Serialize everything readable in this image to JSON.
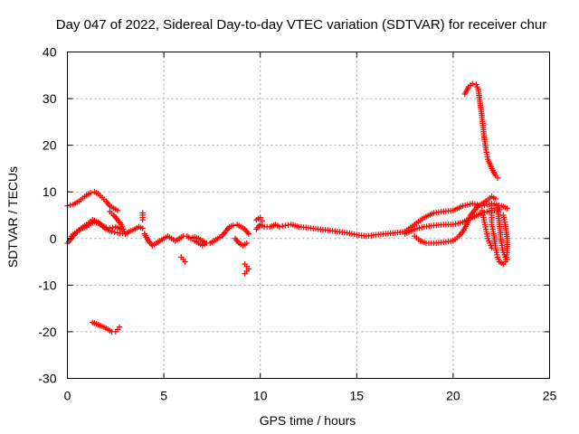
{
  "chart_data": {
    "type": "scatter",
    "title": "Day 047 of 2022, Sidereal Day-to-day VTEC variation (SDTVAR) for receiver chur",
    "xlabel": "GPS time / hours",
    "ylabel": "SDTVAR / TECUs",
    "xlim": [
      0,
      25
    ],
    "ylim": [
      -30,
      40
    ],
    "x_ticks": [
      0,
      5,
      10,
      15,
      20,
      25
    ],
    "y_ticks": [
      -30,
      -20,
      -10,
      0,
      10,
      20,
      30,
      40
    ],
    "grid": true,
    "marker": "+",
    "color": "#ff0000",
    "series": [
      {
        "name": "trace-a",
        "points": [
          [
            0.0,
            7
          ],
          [
            0.3,
            7.3
          ],
          [
            0.6,
            8
          ],
          [
            0.9,
            9
          ],
          [
            1.2,
            9.8
          ],
          [
            1.4,
            10
          ],
          [
            1.6,
            9.6
          ],
          [
            1.8,
            8.8
          ],
          [
            2.0,
            8
          ],
          [
            2.2,
            7
          ],
          [
            2.4,
            6.5
          ],
          [
            2.6,
            6
          ]
        ]
      },
      {
        "name": "trace-b",
        "points": [
          [
            0.0,
            -1
          ],
          [
            0.2,
            0
          ],
          [
            0.4,
            1
          ],
          [
            0.6,
            1.8
          ],
          [
            0.8,
            2.2
          ],
          [
            1.0,
            2.5
          ],
          [
            1.2,
            3.2
          ],
          [
            1.4,
            3.6
          ],
          [
            1.6,
            3.3
          ],
          [
            1.8,
            2.8
          ],
          [
            2.0,
            2.4
          ],
          [
            2.2,
            2.2
          ],
          [
            2.5,
            2.5
          ],
          [
            2.8,
            2
          ]
        ]
      },
      {
        "name": "trace-c",
        "points": [
          [
            0.2,
            0.5
          ],
          [
            0.5,
            1.5
          ],
          [
            0.8,
            2.5
          ],
          [
            1.0,
            3
          ],
          [
            1.3,
            4
          ],
          [
            1.6,
            3.5
          ],
          [
            2.0,
            2
          ],
          [
            2.3,
            1.5
          ],
          [
            2.6,
            1.2
          ],
          [
            3.0,
            1
          ],
          [
            3.2,
            1.5
          ],
          [
            3.5,
            2
          ],
          [
            3.7,
            2.5
          ],
          [
            3.9,
            2.2
          ]
        ]
      },
      {
        "name": "trace-d",
        "points": [
          [
            2.2,
            5.8
          ],
          [
            2.4,
            5
          ],
          [
            2.6,
            4
          ],
          [
            2.8,
            3
          ],
          [
            2.9,
            2
          ],
          [
            3.0,
            1
          ]
        ]
      },
      {
        "name": "trace-e",
        "points": [
          [
            3.9,
            4
          ],
          [
            3.9,
            5
          ],
          [
            3.9,
            5.5
          ]
        ]
      },
      {
        "name": "trace-f",
        "points": [
          [
            1.3,
            -18
          ],
          [
            1.6,
            -18.5
          ],
          [
            1.9,
            -19
          ],
          [
            2.1,
            -19.5
          ],
          [
            2.3,
            -20
          ],
          [
            2.5,
            -20
          ],
          [
            2.6,
            -19.5
          ],
          [
            2.7,
            -19
          ]
        ]
      },
      {
        "name": "trace-g",
        "points": [
          [
            4.0,
            1
          ],
          [
            4.2,
            -0.5
          ],
          [
            4.4,
            -1.5
          ],
          [
            4.6,
            -1
          ],
          [
            4.8,
            -0.5
          ],
          [
            5.0,
            0
          ],
          [
            5.2,
            0.5
          ],
          [
            5.4,
            0
          ],
          [
            5.6,
            -0.5
          ],
          [
            5.8,
            0
          ],
          [
            6.0,
            0.5
          ],
          [
            6.2,
            0.5
          ],
          [
            6.4,
            0
          ],
          [
            6.6,
            0.3
          ],
          [
            6.8,
            0
          ],
          [
            7.0,
            -0.5
          ],
          [
            7.2,
            -1
          ],
          [
            7.4,
            -1
          ],
          [
            7.6,
            -0.5
          ],
          [
            7.8,
            0
          ],
          [
            8.0,
            0.5
          ],
          [
            8.2,
            1.5
          ],
          [
            8.4,
            2.5
          ],
          [
            8.6,
            2.8
          ],
          [
            8.8,
            3
          ],
          [
            9.0,
            2.5
          ],
          [
            9.2,
            2
          ],
          [
            9.4,
            1
          ]
        ]
      },
      {
        "name": "trace-h",
        "points": [
          [
            5.9,
            -4
          ],
          [
            6.0,
            -4.5
          ],
          [
            6.1,
            -5
          ]
        ]
      },
      {
        "name": "trace-i",
        "points": [
          [
            6.6,
            -0.5
          ],
          [
            6.8,
            -1
          ],
          [
            7.0,
            -1.5
          ],
          [
            7.2,
            -1
          ]
        ]
      },
      {
        "name": "trace-j",
        "points": [
          [
            8.7,
            0
          ],
          [
            8.9,
            -1
          ],
          [
            9.1,
            -1.5
          ],
          [
            9.3,
            -1
          ]
        ]
      },
      {
        "name": "trace-k",
        "points": [
          [
            9.2,
            -5.5
          ],
          [
            9.3,
            -6
          ],
          [
            9.4,
            -6.5
          ],
          [
            9.3,
            -7
          ],
          [
            9.2,
            -7.5
          ]
        ]
      },
      {
        "name": "trace-l",
        "points": [
          [
            9.8,
            2
          ],
          [
            10.0,
            3
          ],
          [
            10.2,
            2.5
          ],
          [
            10.5,
            2.5
          ],
          [
            10.8,
            3
          ],
          [
            11.0,
            2.5
          ],
          [
            11.3,
            2.8
          ],
          [
            11.6,
            3
          ],
          [
            12.0,
            2.5
          ],
          [
            12.5,
            2.3
          ],
          [
            13.0,
            2
          ],
          [
            13.5,
            1.8
          ],
          [
            14.0,
            1.5
          ],
          [
            14.5,
            1.2
          ],
          [
            15.0,
            0.8
          ],
          [
            15.5,
            0.5
          ],
          [
            16.0,
            0.8
          ],
          [
            16.5,
            1
          ],
          [
            17.0,
            1.2
          ],
          [
            17.5,
            1.5
          ]
        ]
      },
      {
        "name": "trace-m",
        "points": [
          [
            9.8,
            4
          ],
          [
            10.0,
            4.5
          ],
          [
            10.1,
            3.8
          ]
        ]
      },
      {
        "name": "trace-n",
        "points": [
          [
            17.5,
            1.5
          ],
          [
            18.0,
            3
          ],
          [
            18.5,
            4.5
          ],
          [
            19.0,
            5.5
          ],
          [
            19.5,
            5.8
          ],
          [
            20.0,
            6
          ],
          [
            20.5,
            7
          ],
          [
            21.0,
            7.5
          ],
          [
            21.5,
            7
          ],
          [
            22.0,
            7.5
          ],
          [
            22.5,
            7
          ],
          [
            22.8,
            6.5
          ]
        ]
      },
      {
        "name": "trace-o",
        "points": [
          [
            17.5,
            1
          ],
          [
            18.0,
            2
          ],
          [
            18.5,
            2.5
          ],
          [
            19.0,
            2.8
          ],
          [
            19.5,
            3
          ],
          [
            20.0,
            3
          ],
          [
            20.5,
            3.5
          ],
          [
            21.0,
            4.5
          ],
          [
            21.5,
            5.5
          ],
          [
            22.0,
            6
          ],
          [
            22.4,
            6.2
          ]
        ]
      },
      {
        "name": "trace-p",
        "points": [
          [
            18.0,
            0.5
          ],
          [
            18.3,
            -0.5
          ],
          [
            18.6,
            -1
          ],
          [
            19.0,
            -1
          ],
          [
            19.5,
            -0.8
          ],
          [
            20.0,
            -0.5
          ],
          [
            20.3,
            0.5
          ],
          [
            20.5,
            1.5
          ],
          [
            20.7,
            3
          ],
          [
            20.9,
            5
          ],
          [
            21.1,
            6
          ],
          [
            21.3,
            7
          ],
          [
            21.5,
            7.5
          ],
          [
            21.7,
            8
          ],
          [
            22.0,
            9
          ],
          [
            22.2,
            8.5
          ]
        ]
      },
      {
        "name": "trace-q",
        "points": [
          [
            20.6,
            31
          ],
          [
            20.8,
            32.5
          ],
          [
            21.0,
            33.2
          ],
          [
            21.2,
            33
          ],
          [
            21.3,
            32
          ],
          [
            21.4,
            29
          ],
          [
            21.5,
            26
          ],
          [
            21.6,
            22
          ],
          [
            21.7,
            19
          ],
          [
            21.8,
            17
          ],
          [
            22.0,
            15
          ],
          [
            22.2,
            13.5
          ],
          [
            22.3,
            13
          ]
        ]
      },
      {
        "name": "trace-r",
        "points": [
          [
            22.0,
            7
          ],
          [
            22.0,
            5
          ],
          [
            22.0,
            3
          ],
          [
            22.1,
            1
          ],
          [
            22.2,
            -2
          ],
          [
            22.3,
            -4
          ],
          [
            22.4,
            -5
          ],
          [
            22.6,
            -5.5
          ],
          [
            22.7,
            -5
          ],
          [
            22.8,
            -3
          ],
          [
            22.8,
            0
          ],
          [
            22.7,
            3
          ],
          [
            22.6,
            5
          ]
        ]
      },
      {
        "name": "trace-s",
        "points": [
          [
            21.5,
            6
          ],
          [
            21.6,
            4
          ],
          [
            21.7,
            2
          ],
          [
            21.8,
            0
          ],
          [
            21.9,
            -1
          ],
          [
            22.0,
            -2
          ]
        ]
      },
      {
        "name": "trace-t",
        "points": [
          [
            22.3,
            7
          ],
          [
            22.4,
            3
          ],
          [
            22.5,
            -1
          ],
          [
            22.6,
            -3
          ],
          [
            22.7,
            -4
          ],
          [
            22.8,
            -4.5
          ]
        ]
      }
    ]
  }
}
